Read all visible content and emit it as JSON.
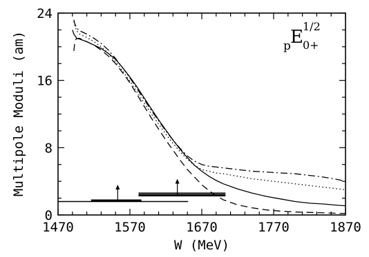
{
  "chart_data": {
    "type": "line",
    "xlabel": "W (MeV)",
    "ylabel": "Multipole Moduli (am)",
    "xlim": [
      1470,
      1870
    ],
    "ylim": [
      0,
      24
    ],
    "xticks": [
      1470,
      1570,
      1670,
      1770,
      1870
    ],
    "yticks": [
      0,
      8,
      16,
      24
    ],
    "grid": false,
    "annotation": {
      "pre": "p",
      "main": "E",
      "sub": "0+",
      "sup": "1/2"
    },
    "series": [
      {
        "style": "solid",
        "x": [
          1490,
          1492,
          1496,
          1500,
          1510,
          1520,
          1530,
          1540,
          1550,
          1560,
          1570,
          1580,
          1590,
          1600,
          1610,
          1620,
          1630,
          1640,
          1650,
          1660,
          1670,
          1680,
          1690,
          1700,
          1720,
          1740,
          1760,
          1780,
          1800,
          1820,
          1840,
          1860,
          1870
        ],
        "y": [
          22.0,
          21.5,
          21.0,
          20.9,
          20.6,
          20.2,
          19.8,
          19.2,
          18.5,
          17.5,
          16.4,
          15.2,
          13.9,
          12.6,
          11.3,
          10.1,
          8.9,
          7.8,
          6.8,
          5.9,
          5.2,
          4.6,
          4.1,
          3.7,
          3.1,
          2.6,
          2.2,
          1.9,
          1.6,
          1.4,
          1.3,
          1.15,
          1.1
        ]
      },
      {
        "style": "dashed",
        "x": [
          1492,
          1493,
          1495,
          1497,
          1500,
          1510,
          1520,
          1530,
          1540,
          1550,
          1560,
          1570,
          1580,
          1590,
          1600,
          1610,
          1620,
          1630,
          1640,
          1650,
          1660,
          1670,
          1680,
          1690,
          1700,
          1720,
          1740,
          1760,
          1780,
          1800,
          1820,
          1840,
          1860,
          1870
        ],
        "y": [
          19.5,
          20.3,
          20.9,
          21.0,
          21.0,
          20.6,
          20.2,
          19.6,
          18.9,
          18.0,
          16.9,
          15.7,
          14.3,
          12.9,
          11.5,
          10.2,
          8.9,
          7.7,
          6.5,
          5.4,
          4.5,
          3.6,
          2.9,
          2.3,
          1.8,
          1.2,
          0.85,
          0.6,
          0.45,
          0.35,
          0.3,
          0.25,
          0.2,
          0.2
        ]
      },
      {
        "style": "dotted",
        "x": [
          1492,
          1493,
          1496,
          1500,
          1510,
          1520,
          1530,
          1540,
          1550,
          1560,
          1570,
          1580,
          1590,
          1600,
          1610,
          1620,
          1630,
          1640,
          1650,
          1660,
          1670,
          1680,
          1690,
          1700,
          1720,
          1740,
          1760,
          1780,
          1800,
          1820,
          1840,
          1860,
          1870
        ],
        "y": [
          23.0,
          22.6,
          21.9,
          21.5,
          21.1,
          20.6,
          20.0,
          19.2,
          18.2,
          17.1,
          15.9,
          14.6,
          13.3,
          12.0,
          10.8,
          9.6,
          8.5,
          7.5,
          6.6,
          5.9,
          5.4,
          5.2,
          5.0,
          4.9,
          4.6,
          4.3,
          4.1,
          3.9,
          3.7,
          3.5,
          3.3,
          3.1,
          3.0
        ]
      },
      {
        "style": "dash-dot",
        "x": [
          1492,
          1493,
          1496,
          1500,
          1510,
          1520,
          1530,
          1540,
          1550,
          1560,
          1570,
          1580,
          1590,
          1600,
          1610,
          1620,
          1630,
          1640,
          1650,
          1660,
          1670,
          1680,
          1690,
          1700,
          1720,
          1740,
          1760,
          1780,
          1800,
          1820,
          1840,
          1860,
          1870
        ],
        "y": [
          23.2,
          22.8,
          22.2,
          21.9,
          21.5,
          21.0,
          20.4,
          19.6,
          18.6,
          17.5,
          16.3,
          15.0,
          13.7,
          12.4,
          11.2,
          10.0,
          8.9,
          7.9,
          7.0,
          6.4,
          6.0,
          5.8,
          5.7,
          5.6,
          5.4,
          5.2,
          5.1,
          5.0,
          4.9,
          4.7,
          4.5,
          4.2,
          4.0
        ]
      }
    ],
    "bands": [
      {
        "x0": 1470,
        "x1": 1651,
        "y": 1.6,
        "weight": "thin"
      },
      {
        "x0": 1516,
        "x1": 1586,
        "y": 1.7,
        "weight": "thick"
      },
      {
        "x0": 1582,
        "x1": 1703,
        "y": 2.35,
        "weight": "thick"
      },
      {
        "x0": 1582,
        "x1": 1703,
        "y": 2.6,
        "weight": "thin"
      }
    ],
    "arrows": [
      {
        "x": 1553,
        "y0": 1.8,
        "y1": 3.6
      },
      {
        "x": 1636,
        "y0": 2.5,
        "y1": 4.3
      }
    ]
  }
}
